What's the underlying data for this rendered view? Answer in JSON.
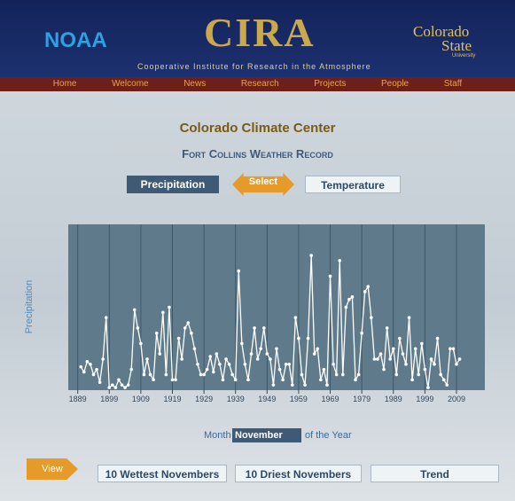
{
  "header": {
    "left_logo": "NOAA",
    "center_logo": "CIRA",
    "tagline": "Cooperative Institute for Research in the Atmosphere",
    "right_logo_1": "Colorado",
    "right_logo_2": "State",
    "right_logo_3": "University"
  },
  "nav": [
    "Home",
    "Welcome",
    "News",
    "Research",
    "Projects",
    "People",
    "Staff"
  ],
  "page": {
    "title": "Colorado Climate Center",
    "subtitle": "Fort Collins Weather Record",
    "toggle_left": "Precipitation",
    "toggle_middle": "Select",
    "toggle_right": "Temperature"
  },
  "chart_data": {
    "type": "line",
    "ylabel": "Precipitation",
    "color": "#ffffff",
    "grid": true,
    "xlim": [
      1886,
      2018
    ],
    "xticks": [
      1889,
      1899,
      1909,
      1919,
      1929,
      1939,
      1949,
      1959,
      1969,
      1979,
      1989,
      1999,
      2009
    ],
    "ylim": [
      0,
      3.2
    ],
    "x": [
      1890,
      1891,
      1892,
      1893,
      1894,
      1895,
      1896,
      1897,
      1898,
      1899,
      1900,
      1901,
      1902,
      1903,
      1904,
      1905,
      1906,
      1907,
      1908,
      1909,
      1910,
      1911,
      1912,
      1913,
      1914,
      1915,
      1916,
      1917,
      1918,
      1919,
      1920,
      1921,
      1922,
      1923,
      1924,
      1925,
      1926,
      1927,
      1928,
      1929,
      1930,
      1931,
      1932,
      1933,
      1934,
      1935,
      1936,
      1937,
      1938,
      1939,
      1940,
      1941,
      1942,
      1943,
      1944,
      1945,
      1946,
      1947,
      1948,
      1949,
      1950,
      1951,
      1952,
      1953,
      1954,
      1955,
      1956,
      1957,
      1958,
      1959,
      1960,
      1961,
      1962,
      1963,
      1964,
      1965,
      1966,
      1967,
      1968,
      1969,
      1970,
      1971,
      1972,
      1973,
      1974,
      1975,
      1976,
      1977,
      1978,
      1979,
      1980,
      1981,
      1982,
      1983,
      1984,
      1985,
      1986,
      1987,
      1988,
      1989,
      1990,
      1991,
      1992,
      1993,
      1994,
      1995,
      1996,
      1997,
      1998,
      1999,
      2000,
      2001,
      2002,
      2003,
      2004,
      2005,
      2006,
      2007,
      2008,
      2009,
      2010
    ],
    "values": [
      0.45,
      0.35,
      0.55,
      0.5,
      0.3,
      0.4,
      0.15,
      0.6,
      1.4,
      0.05,
      0.1,
      0.05,
      0.2,
      0.1,
      0.05,
      0.1,
      0.4,
      1.55,
      1.2,
      0.9,
      0.3,
      0.6,
      0.3,
      0.2,
      1.1,
      0.7,
      1.5,
      0.3,
      1.6,
      0.2,
      0.2,
      1.0,
      0.6,
      1.2,
      1.3,
      1.1,
      0.8,
      0.5,
      0.3,
      0.3,
      0.4,
      0.65,
      0.35,
      0.7,
      0.5,
      0.2,
      0.6,
      0.5,
      0.3,
      0.2,
      2.3,
      0.9,
      0.5,
      0.2,
      0.7,
      1.2,
      0.6,
      0.8,
      1.2,
      0.7,
      0.6,
      0.1,
      0.8,
      0.4,
      0.2,
      0.5,
      0.5,
      0.1,
      1.4,
      1.0,
      0.3,
      0.1,
      1.0,
      2.6,
      0.7,
      0.8,
      0.2,
      0.4,
      0.1,
      2.2,
      0.5,
      0.3,
      2.5,
      0.3,
      1.6,
      1.75,
      1.8,
      0.2,
      0.3,
      1.1,
      1.9,
      2.0,
      1.4,
      0.6,
      0.6,
      0.7,
      0.4,
      1.2,
      0.6,
      0.8,
      0.3,
      1.0,
      0.7,
      0.5,
      1.4,
      0.2,
      0.8,
      0.3,
      0.9,
      0.4,
      0.05,
      0.6,
      0.5,
      1.0,
      0.3,
      0.2,
      0.1,
      0.8,
      0.8,
      0.5,
      0.6
    ]
  },
  "controls": {
    "month_label": "Month",
    "month_value": "November",
    "month_suffix": "of the Year",
    "view": "View",
    "wettest": "10 Wettest Novembers",
    "driest": "10 Driest Novembers",
    "trend": "Trend"
  }
}
